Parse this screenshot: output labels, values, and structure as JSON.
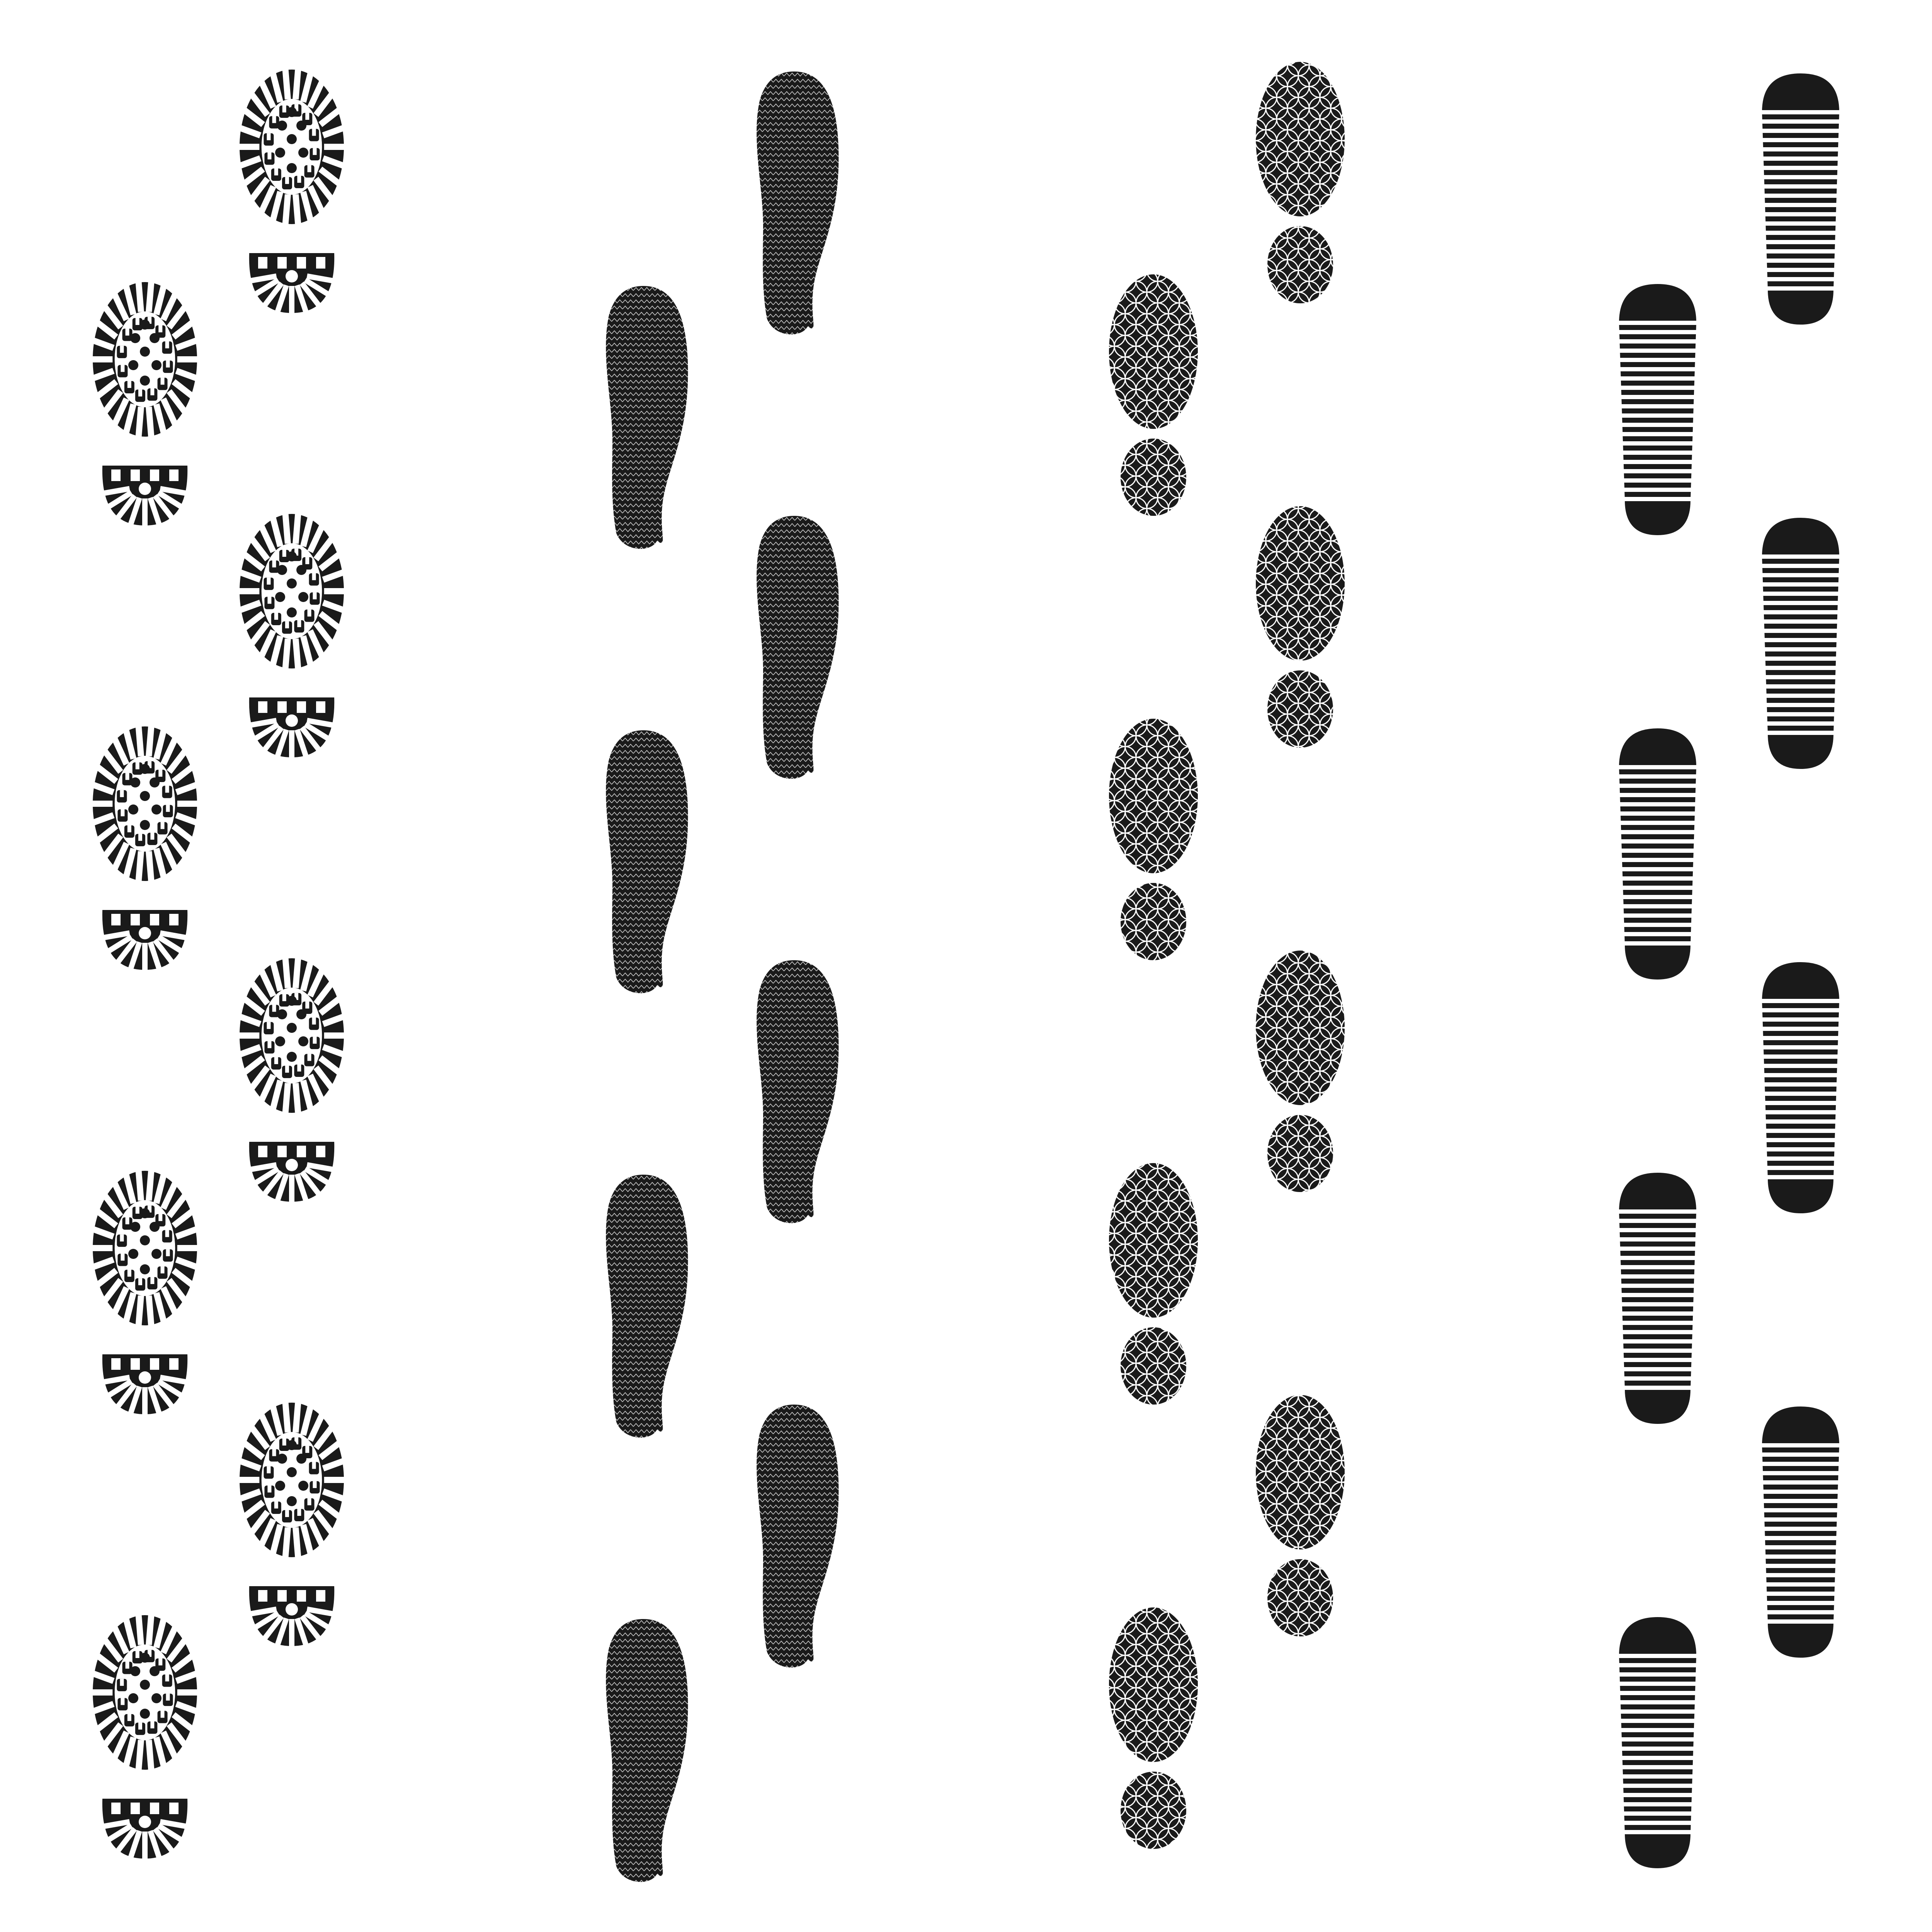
{
  "background_color": "#ffffff",
  "ink_color": "#1a1a1a",
  "tracks": [
    {
      "name": "boot-track",
      "pattern": "lugged-boot-sole",
      "prints": 8
    },
    {
      "name": "zigzag-track",
      "pattern": "zigzag-sole",
      "prints": 8
    },
    {
      "name": "circle-lattice-track",
      "pattern": "overlapping-circles-sole",
      "prints": 8
    },
    {
      "name": "striped-track",
      "pattern": "horizontal-stripes-sole",
      "prints": 8
    }
  ]
}
